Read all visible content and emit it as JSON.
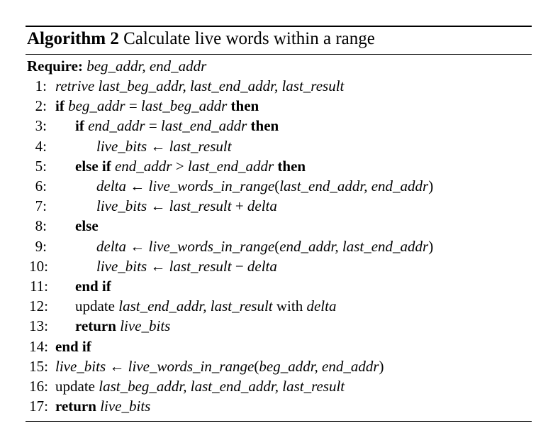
{
  "algorithm": {
    "label": "Algorithm 2",
    "title": "Calculate live words within a range",
    "require_label": "Require:",
    "require_args": "beg_addr, end_addr"
  },
  "lines": [
    {
      "num": "1:",
      "indent": 0,
      "tokens": [
        {
          "t": "retrive ",
          "s": "v"
        },
        {
          "t": "last_beg_addr, last_end_addr, last_result",
          "s": "v"
        }
      ]
    },
    {
      "num": "2:",
      "indent": 0,
      "tokens": [
        {
          "t": "if ",
          "s": "kw"
        },
        {
          "t": "beg_addr",
          "s": "v"
        },
        {
          "t": " = ",
          "s": "op"
        },
        {
          "t": "last_beg_addr",
          "s": "v"
        },
        {
          "t": " then",
          "s": "kw"
        }
      ]
    },
    {
      "num": "3:",
      "indent": 1,
      "tokens": [
        {
          "t": "if ",
          "s": "kw"
        },
        {
          "t": "end_addr",
          "s": "v"
        },
        {
          "t": " = ",
          "s": "op"
        },
        {
          "t": "last_end_addr",
          "s": "v"
        },
        {
          "t": " then",
          "s": "kw"
        }
      ]
    },
    {
      "num": "4:",
      "indent": 2,
      "tokens": [
        {
          "t": "live_bits",
          "s": "v"
        },
        {
          "t": " ← ",
          "s": "op"
        },
        {
          "t": "last_result",
          "s": "v"
        }
      ]
    },
    {
      "num": "5:",
      "indent": 1,
      "tokens": [
        {
          "t": "else if ",
          "s": "kw"
        },
        {
          "t": "end_addr",
          "s": "v"
        },
        {
          "t": " > ",
          "s": "op"
        },
        {
          "t": "last_end_addr",
          "s": "v"
        },
        {
          "t": " then",
          "s": "kw"
        }
      ]
    },
    {
      "num": "6:",
      "indent": 2,
      "tokens": [
        {
          "t": "delta",
          "s": "v"
        },
        {
          "t": " ← ",
          "s": "op"
        },
        {
          "t": "live_words_in_range",
          "s": "v"
        },
        {
          "t": "(",
          "s": "op"
        },
        {
          "t": "last_end_addr, end_addr",
          "s": "v"
        },
        {
          "t": ")",
          "s": "op"
        }
      ]
    },
    {
      "num": "7:",
      "indent": 2,
      "tokens": [
        {
          "t": "live_bits",
          "s": "v"
        },
        {
          "t": " ← ",
          "s": "op"
        },
        {
          "t": "last_result",
          "s": "v"
        },
        {
          "t": " + ",
          "s": "op"
        },
        {
          "t": "delta",
          "s": "v"
        }
      ]
    },
    {
      "num": "8:",
      "indent": 1,
      "tokens": [
        {
          "t": "else",
          "s": "kw"
        }
      ]
    },
    {
      "num": "9:",
      "indent": 2,
      "tokens": [
        {
          "t": "delta",
          "s": "v"
        },
        {
          "t": " ← ",
          "s": "op"
        },
        {
          "t": "live_words_in_range",
          "s": "v"
        },
        {
          "t": "(",
          "s": "op"
        },
        {
          "t": "end_addr, last_end_addr",
          "s": "v"
        },
        {
          "t": ")",
          "s": "op"
        }
      ]
    },
    {
      "num": "10:",
      "indent": 2,
      "tokens": [
        {
          "t": "live_bits",
          "s": "v"
        },
        {
          "t": " ← ",
          "s": "op"
        },
        {
          "t": "last_result",
          "s": "v"
        },
        {
          "t": " − ",
          "s": "op"
        },
        {
          "t": "delta",
          "s": "v"
        }
      ]
    },
    {
      "num": "11:",
      "indent": 1,
      "tokens": [
        {
          "t": "end if",
          "s": "kw"
        }
      ]
    },
    {
      "num": "12:",
      "indent": 1,
      "tokens": [
        {
          "t": "update ",
          "s": "op"
        },
        {
          "t": "last_end_addr,  last_result",
          "s": "v"
        },
        {
          "t": " with ",
          "s": "op"
        },
        {
          "t": "delta",
          "s": "v"
        }
      ]
    },
    {
      "num": "13:",
      "indent": 1,
      "tokens": [
        {
          "t": "return ",
          "s": "kw"
        },
        {
          "t": "live_bits",
          "s": "v"
        }
      ]
    },
    {
      "num": "14:",
      "indent": 0,
      "tokens": [
        {
          "t": "end if",
          "s": "kw"
        }
      ]
    },
    {
      "num": "15:",
      "indent": 0,
      "tokens": [
        {
          "t": "live_bits",
          "s": "v"
        },
        {
          "t": " ← ",
          "s": "op"
        },
        {
          "t": "live_words_in_range",
          "s": "v"
        },
        {
          "t": "(",
          "s": "op"
        },
        {
          "t": "beg_addr, end_addr",
          "s": "v"
        },
        {
          "t": ")",
          "s": "op"
        }
      ]
    },
    {
      "num": "16:",
      "indent": 0,
      "tokens": [
        {
          "t": "update ",
          "s": "op"
        },
        {
          "t": "last_beg_addr, last_end_addr, last_result",
          "s": "v"
        }
      ]
    },
    {
      "num": "17:",
      "indent": 0,
      "tokens": [
        {
          "t": "return ",
          "s": "kw"
        },
        {
          "t": "live_bits",
          "s": "v"
        }
      ]
    }
  ]
}
